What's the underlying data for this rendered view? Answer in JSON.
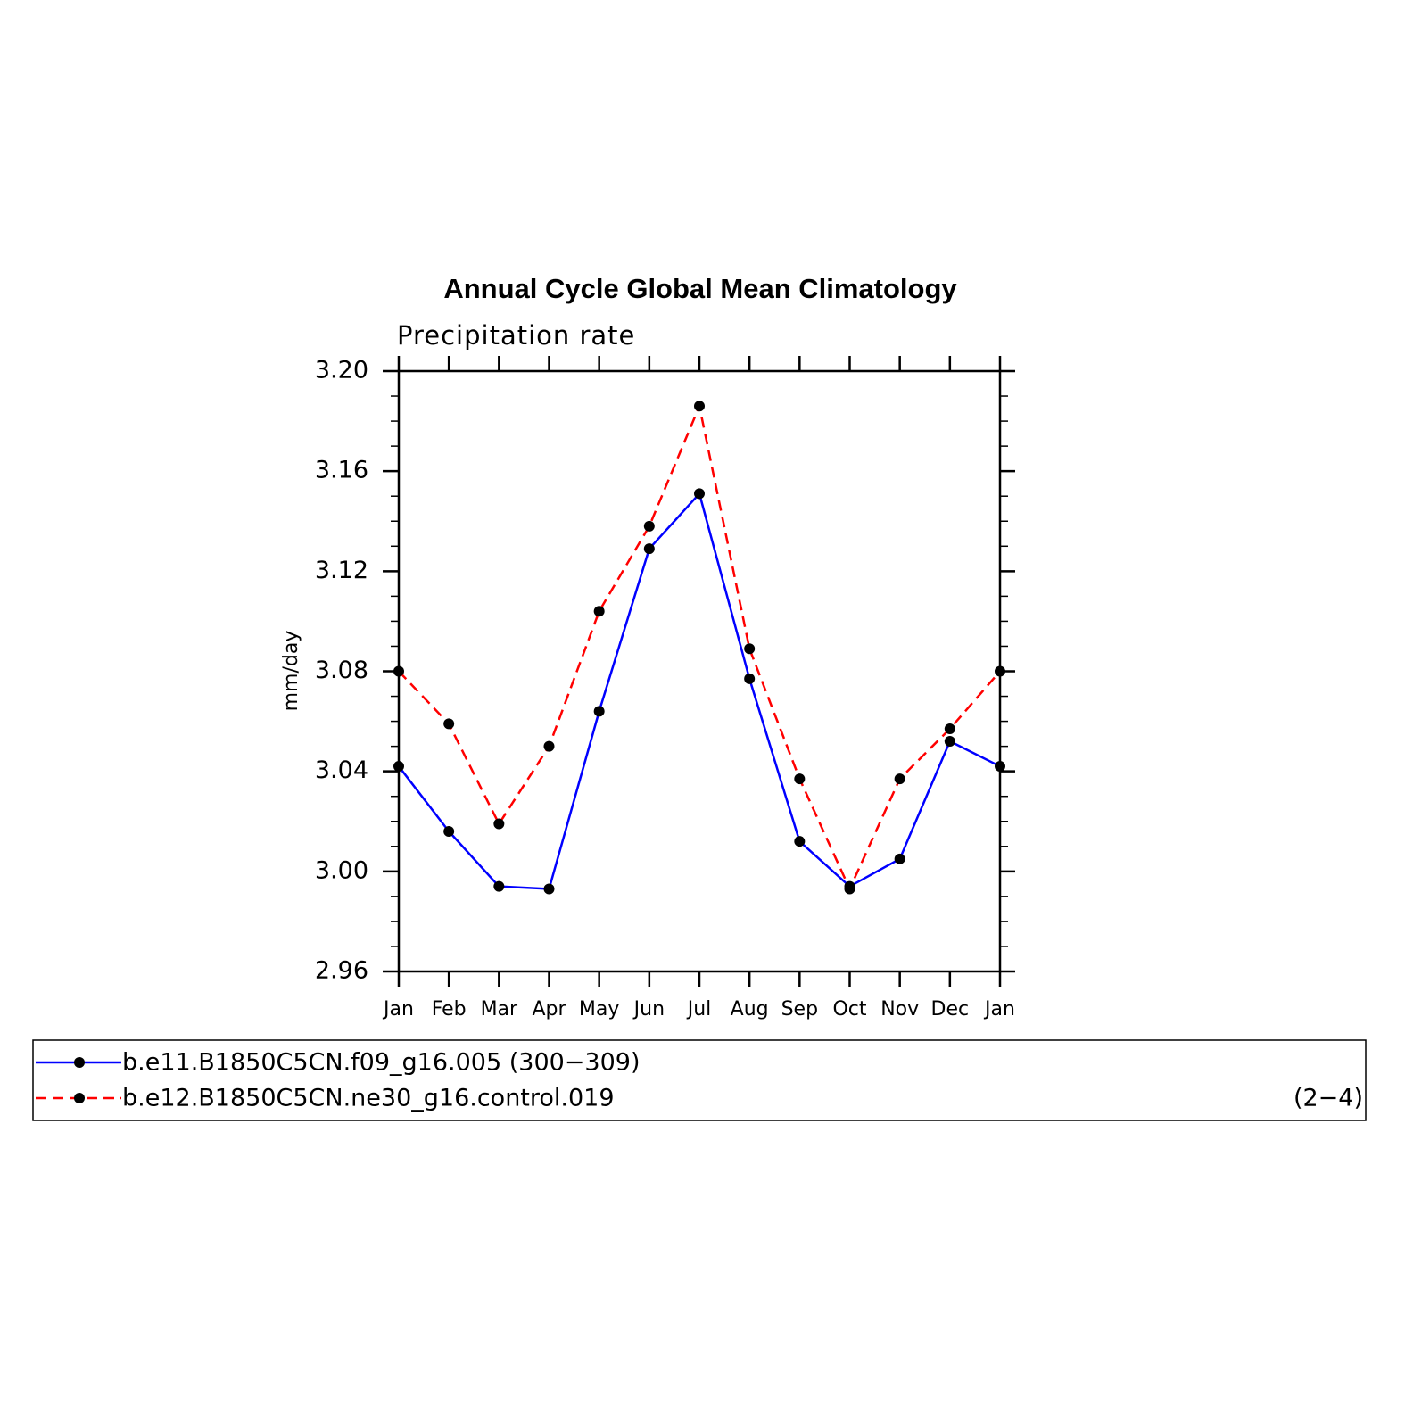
{
  "chart_data": {
    "type": "line",
    "title": "Annual Cycle Global Mean Climatology",
    "subtitle": "Precipitation rate",
    "y_label": "mm/day",
    "categories": [
      "Jan",
      "Feb",
      "Mar",
      "Apr",
      "May",
      "Jun",
      "Jul",
      "Aug",
      "Sep",
      "Oct",
      "Nov",
      "Dec",
      "Jan"
    ],
    "series": [
      {
        "name": "b.e11.B1850C5CN.f09_g16.005 (300−309)",
        "color": "#0000ff",
        "dash": false,
        "values": [
          3.042,
          3.016,
          2.994,
          2.993,
          3.064,
          3.129,
          3.151,
          3.077,
          3.012,
          2.994,
          3.005,
          3.052,
          3.042
        ]
      },
      {
        "name": "b.e12.B1850C5CN.ne30_g16.control.019",
        "color": "#ff0000",
        "dash": true,
        "values": [
          3.08,
          3.059,
          3.019,
          3.05,
          3.104,
          3.138,
          3.186,
          3.089,
          3.037,
          2.993,
          3.037,
          3.057,
          3.08
        ]
      }
    ],
    "legend_note": "(2−4)",
    "ylim": [
      2.96,
      3.2
    ],
    "yticks": [
      2.96,
      {
        "value": 3,
        "label": "3.00"
      },
      3.04,
      3.08,
      3.12,
      3.16,
      {
        "value": 3.2,
        "label": "3.20"
      }
    ],
    "y_minor_ticks": [
      2.97,
      2.98,
      2.99,
      3.01,
      3.02,
      3.03,
      3.05,
      3.06,
      3.07,
      3.09,
      3.1,
      3.11,
      3.13,
      3.14,
      3.15,
      3.17,
      3.18,
      3.19
    ]
  }
}
